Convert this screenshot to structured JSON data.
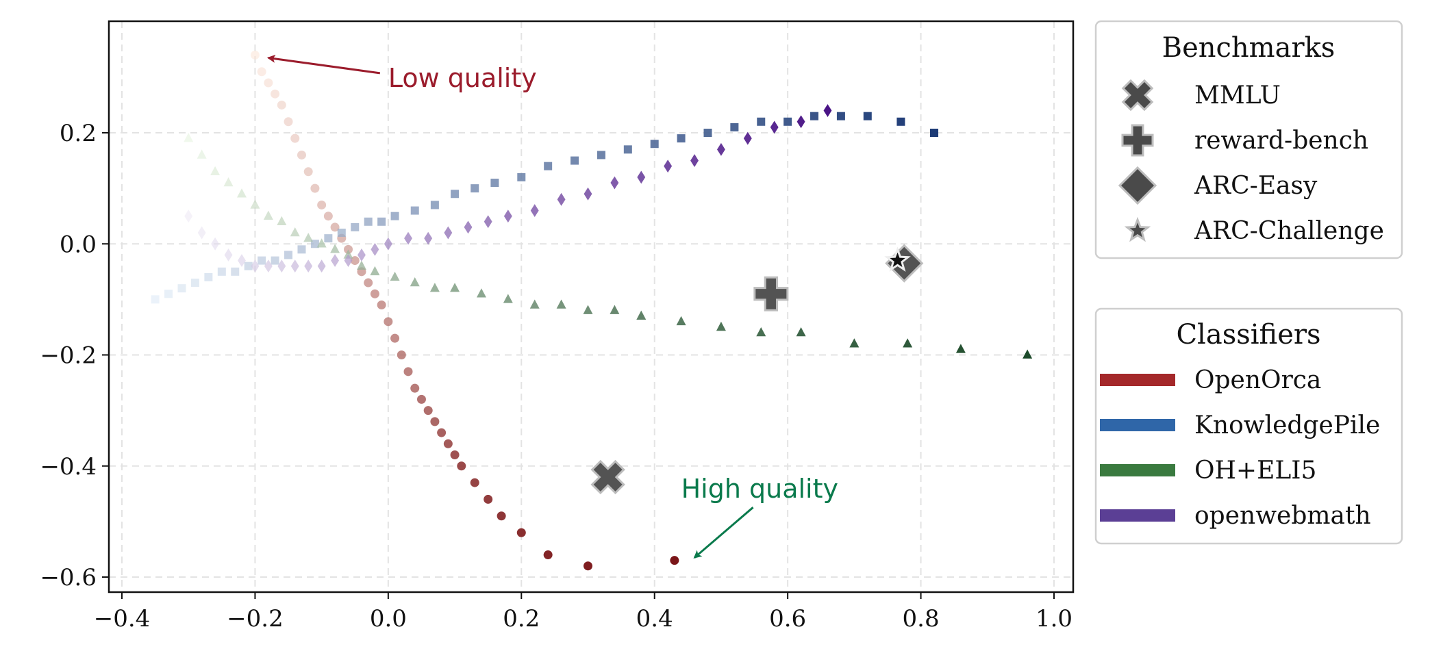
{
  "chart_data": {
    "type": "scatter",
    "title": "",
    "xlabel": "",
    "ylabel": "",
    "xlim": [
      -0.42,
      1.03
    ],
    "ylim": [
      -0.63,
      0.4
    ],
    "xticks": [
      -0.4,
      -0.2,
      0.0,
      0.2,
      0.4,
      0.6,
      0.8,
      1.0
    ],
    "yticks": [
      -0.6,
      -0.4,
      -0.2,
      0.0,
      0.2
    ],
    "xtick_labels": [
      "−0.4",
      "−0.2",
      "0.0",
      "0.2",
      "0.4",
      "0.6",
      "0.8",
      "1.0"
    ],
    "ytick_labels": [
      "−0.6",
      "−0.4",
      "−0.2",
      "0.0",
      "0.2"
    ],
    "grid": true,
    "series": [
      {
        "name": "OpenOrca",
        "marker": "circle",
        "color_start": "#fbe3d6",
        "color_end": "#7a1518",
        "points": [
          [
            -0.2,
            0.34
          ],
          [
            -0.19,
            0.31
          ],
          [
            -0.18,
            0.29
          ],
          [
            -0.17,
            0.27
          ],
          [
            -0.16,
            0.25
          ],
          [
            -0.15,
            0.22
          ],
          [
            -0.14,
            0.19
          ],
          [
            -0.13,
            0.16
          ],
          [
            -0.12,
            0.13
          ],
          [
            -0.11,
            0.1
          ],
          [
            -0.1,
            0.07
          ],
          [
            -0.09,
            0.05
          ],
          [
            -0.08,
            0.03
          ],
          [
            -0.07,
            0.01
          ],
          [
            -0.06,
            -0.01
          ],
          [
            -0.05,
            -0.03
          ],
          [
            -0.04,
            -0.05
          ],
          [
            -0.03,
            -0.07
          ],
          [
            -0.02,
            -0.09
          ],
          [
            -0.01,
            -0.11
          ],
          [
            0.0,
            -0.14
          ],
          [
            0.01,
            -0.17
          ],
          [
            0.02,
            -0.2
          ],
          [
            0.03,
            -0.23
          ],
          [
            0.04,
            -0.26
          ],
          [
            0.05,
            -0.28
          ],
          [
            0.06,
            -0.3
          ],
          [
            0.07,
            -0.32
          ],
          [
            0.08,
            -0.34
          ],
          [
            0.09,
            -0.36
          ],
          [
            0.1,
            -0.38
          ],
          [
            0.11,
            -0.4
          ],
          [
            0.13,
            -0.43
          ],
          [
            0.15,
            -0.46
          ],
          [
            0.17,
            -0.49
          ],
          [
            0.2,
            -0.52
          ],
          [
            0.24,
            -0.56
          ],
          [
            0.3,
            -0.58
          ],
          [
            0.43,
            -0.57
          ]
        ]
      },
      {
        "name": "KnowledgePile",
        "marker": "square",
        "color_start": "#dbe8f5",
        "color_end": "#1c3a75",
        "points": [
          [
            -0.35,
            -0.1
          ],
          [
            -0.33,
            -0.09
          ],
          [
            -0.31,
            -0.08
          ],
          [
            -0.29,
            -0.07
          ],
          [
            -0.27,
            -0.06
          ],
          [
            -0.25,
            -0.05
          ],
          [
            -0.23,
            -0.05
          ],
          [
            -0.21,
            -0.04
          ],
          [
            -0.19,
            -0.03
          ],
          [
            -0.17,
            -0.03
          ],
          [
            -0.15,
            -0.02
          ],
          [
            -0.13,
            -0.01
          ],
          [
            -0.11,
            0.0
          ],
          [
            -0.09,
            0.01
          ],
          [
            -0.07,
            0.02
          ],
          [
            -0.05,
            0.03
          ],
          [
            -0.03,
            0.04
          ],
          [
            -0.01,
            0.04
          ],
          [
            0.01,
            0.05
          ],
          [
            0.04,
            0.06
          ],
          [
            0.07,
            0.07
          ],
          [
            0.1,
            0.09
          ],
          [
            0.13,
            0.1
          ],
          [
            0.16,
            0.11
          ],
          [
            0.2,
            0.12
          ],
          [
            0.24,
            0.14
          ],
          [
            0.28,
            0.15
          ],
          [
            0.32,
            0.16
          ],
          [
            0.36,
            0.17
          ],
          [
            0.4,
            0.18
          ],
          [
            0.44,
            0.19
          ],
          [
            0.48,
            0.2
          ],
          [
            0.52,
            0.21
          ],
          [
            0.56,
            0.22
          ],
          [
            0.6,
            0.22
          ],
          [
            0.64,
            0.23
          ],
          [
            0.68,
            0.23
          ],
          [
            0.72,
            0.23
          ],
          [
            0.77,
            0.22
          ],
          [
            0.82,
            0.2
          ]
        ]
      },
      {
        "name": "OH+ELI5",
        "marker": "triangle",
        "color_start": "#e4f3dc",
        "color_end": "#1c4a2a",
        "points": [
          [
            -0.3,
            0.19
          ],
          [
            -0.28,
            0.16
          ],
          [
            -0.26,
            0.13
          ],
          [
            -0.24,
            0.11
          ],
          [
            -0.22,
            0.09
          ],
          [
            -0.2,
            0.07
          ],
          [
            -0.18,
            0.05
          ],
          [
            -0.16,
            0.04
          ],
          [
            -0.14,
            0.02
          ],
          [
            -0.12,
            0.01
          ],
          [
            -0.1,
            0.0
          ],
          [
            -0.08,
            -0.01
          ],
          [
            -0.06,
            -0.02
          ],
          [
            -0.04,
            -0.04
          ],
          [
            -0.02,
            -0.05
          ],
          [
            0.01,
            -0.06
          ],
          [
            0.04,
            -0.07
          ],
          [
            0.07,
            -0.08
          ],
          [
            0.1,
            -0.08
          ],
          [
            0.14,
            -0.09
          ],
          [
            0.18,
            -0.1
          ],
          [
            0.22,
            -0.11
          ],
          [
            0.26,
            -0.11
          ],
          [
            0.3,
            -0.12
          ],
          [
            0.34,
            -0.12
          ],
          [
            0.38,
            -0.13
          ],
          [
            0.44,
            -0.14
          ],
          [
            0.5,
            -0.15
          ],
          [
            0.56,
            -0.16
          ],
          [
            0.62,
            -0.16
          ],
          [
            0.7,
            -0.18
          ],
          [
            0.78,
            -0.18
          ],
          [
            0.86,
            -0.19
          ],
          [
            0.96,
            -0.2
          ]
        ]
      },
      {
        "name": "openwebmath",
        "marker": "diamond",
        "color_start": "#ece8f4",
        "color_end": "#4a1486",
        "points": [
          [
            -0.3,
            0.05
          ],
          [
            -0.28,
            0.02
          ],
          [
            -0.26,
            0.0
          ],
          [
            -0.24,
            -0.02
          ],
          [
            -0.22,
            -0.03
          ],
          [
            -0.2,
            -0.04
          ],
          [
            -0.18,
            -0.04
          ],
          [
            -0.16,
            -0.04
          ],
          [
            -0.14,
            -0.04
          ],
          [
            -0.12,
            -0.04
          ],
          [
            -0.1,
            -0.04
          ],
          [
            -0.08,
            -0.03
          ],
          [
            -0.06,
            -0.03
          ],
          [
            -0.04,
            -0.02
          ],
          [
            -0.02,
            -0.01
          ],
          [
            0.0,
            0.0
          ],
          [
            0.03,
            0.01
          ],
          [
            0.06,
            0.01
          ],
          [
            0.09,
            0.02
          ],
          [
            0.12,
            0.03
          ],
          [
            0.15,
            0.04
          ],
          [
            0.18,
            0.05
          ],
          [
            0.22,
            0.06
          ],
          [
            0.26,
            0.08
          ],
          [
            0.3,
            0.09
          ],
          [
            0.34,
            0.11
          ],
          [
            0.38,
            0.12
          ],
          [
            0.42,
            0.14
          ],
          [
            0.46,
            0.15
          ],
          [
            0.5,
            0.17
          ],
          [
            0.54,
            0.19
          ],
          [
            0.58,
            0.21
          ],
          [
            0.62,
            0.22
          ],
          [
            0.66,
            0.24
          ]
        ]
      }
    ],
    "benchmarks": [
      {
        "name": "MMLU",
        "marker": "x",
        "x": 0.33,
        "y": -0.42
      },
      {
        "name": "reward-bench",
        "marker": "plus",
        "x": 0.575,
        "y": -0.09
      },
      {
        "name": "ARC-Easy",
        "marker": "diamond",
        "x": 0.775,
        "y": -0.035
      },
      {
        "name": "ARC-Challenge",
        "marker": "star",
        "x": 0.765,
        "y": -0.03
      }
    ],
    "annotations": [
      {
        "text": "Low quality",
        "color": "#9b1c2c",
        "text_x": 0.0,
        "text_y": 0.3,
        "arrow_to_x": -0.18,
        "arrow_to_y": 0.335
      },
      {
        "text": "High quality",
        "color": "#0a7a4c",
        "text_x": 0.44,
        "text_y": -0.44,
        "arrow_to_x": 0.46,
        "arrow_to_y": -0.565
      }
    ],
    "legends": {
      "benchmarks": {
        "title": "Benchmarks",
        "position": "right-top",
        "entries": [
          "MMLU",
          "reward-bench",
          "ARC-Easy",
          "ARC-Challenge"
        ]
      },
      "classifiers": {
        "title": "Classifiers",
        "position": "right-middle",
        "entries": [
          {
            "name": "OpenOrca",
            "color": "#a4282a"
          },
          {
            "name": "KnowledgePile",
            "color": "#2f66a8"
          },
          {
            "name": "OH+ELI5",
            "color": "#3a7a3f"
          },
          {
            "name": "openwebmath",
            "color": "#5b3f95"
          }
        ]
      }
    },
    "benchmark_color": "#4a4a4a"
  }
}
